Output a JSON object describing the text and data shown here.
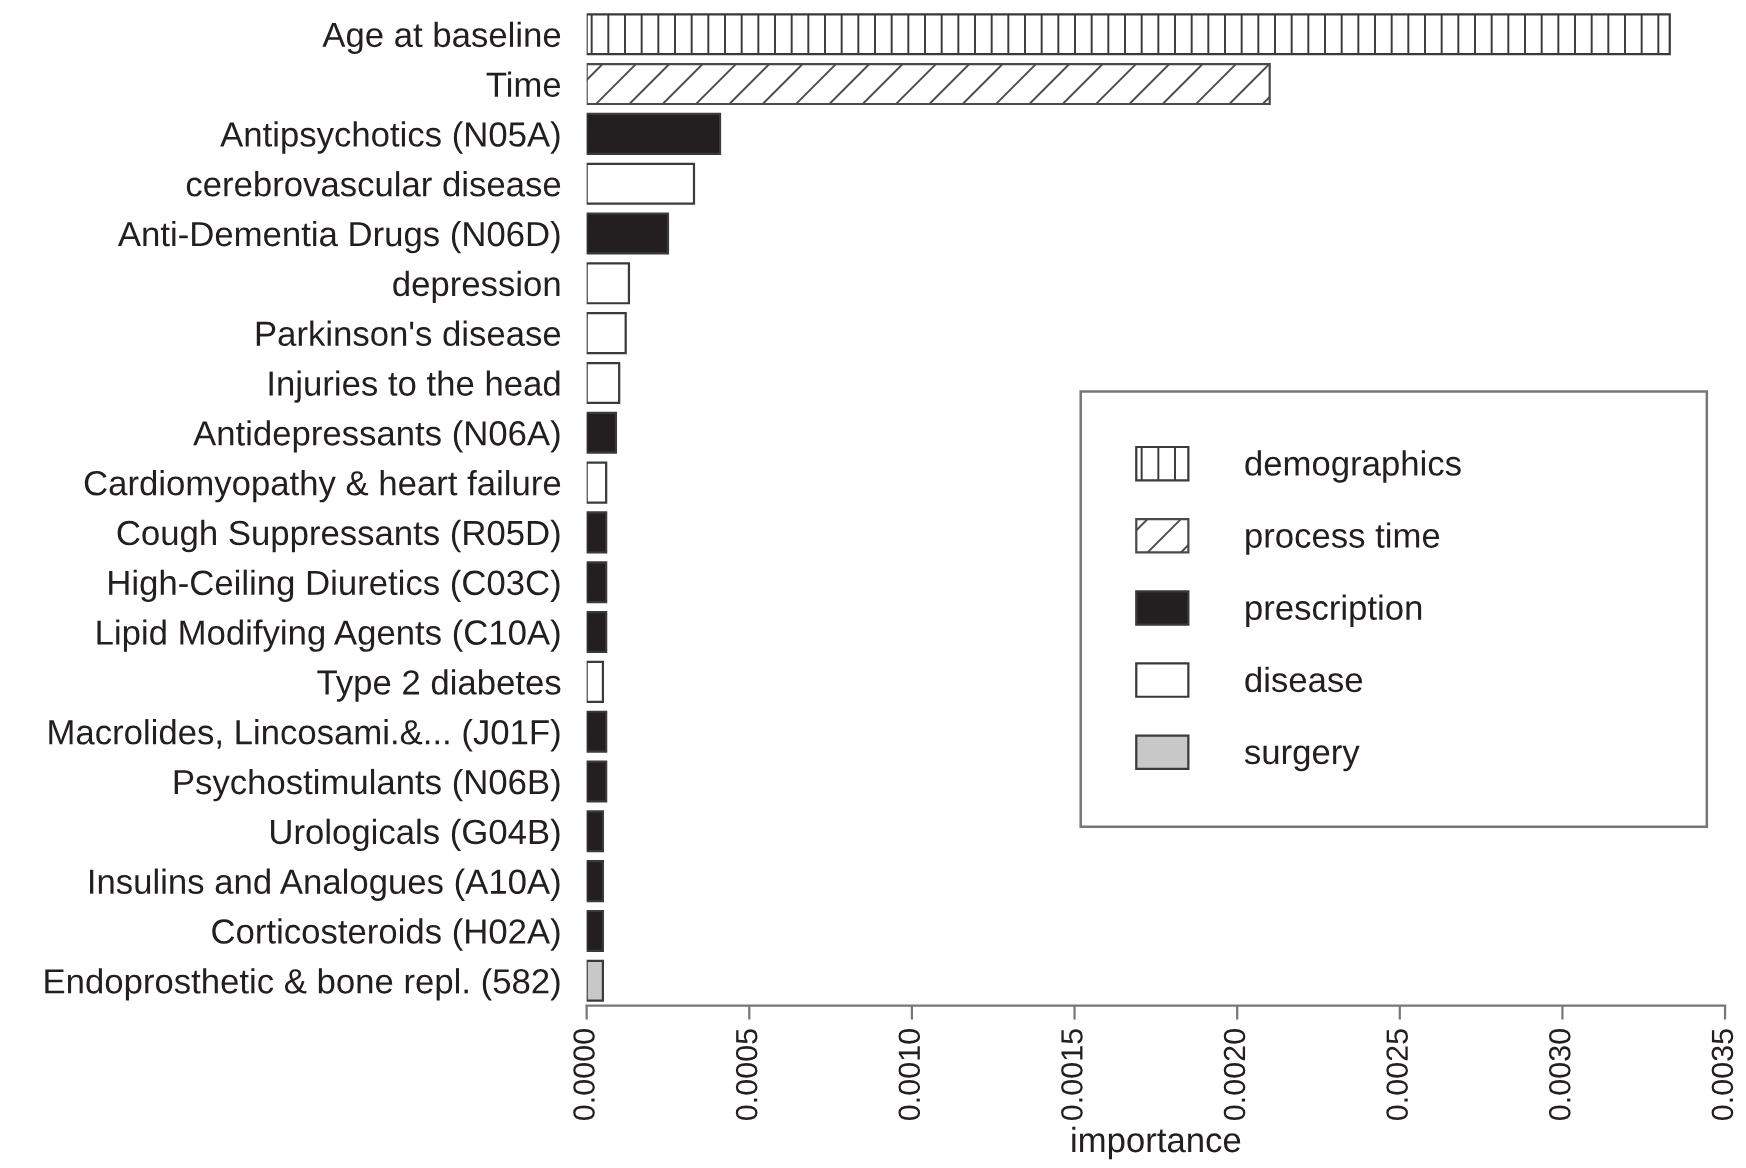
{
  "chart_data": {
    "type": "bar",
    "orientation": "horizontal",
    "stacked": true,
    "xlabel": "importance",
    "categories": [
      "Age at baseline",
      "Time",
      "Antipsychotics (N05A)",
      "cerebrovascular disease",
      "Anti-Dementia Drugs (N06D)",
      "depression",
      "Parkinson's disease",
      "Injuries to the head",
      "Antidepressants (N06A)",
      "Cardiomyopathy & heart failure",
      "Cough Suppressants (R05D)",
      "High-Ceiling Diuretics (C03C)",
      "Lipid Modifying Agents (C10A)",
      "Type 2 diabetes",
      "Macrolides, Lincosami.&... (J01F)",
      "Psychostimulants (N06B)",
      "Urologicals (G04B)",
      "Insulins and Analogues (A10A)",
      "Corticosteroids (H02A)",
      "Endoprosthetic & bone repl. (582)"
    ],
    "series": [
      {
        "name": "demographics",
        "color": "#3a3a3a",
        "values": [
          0.00333,
          null,
          null,
          null,
          null,
          null,
          null,
          null,
          null,
          null,
          null,
          null,
          null,
          null,
          null,
          null,
          null,
          null,
          null,
          null
        ]
      },
      {
        "name": "process time",
        "color": "#4a4a4a",
        "values": [
          null,
          0.0021,
          null,
          null,
          null,
          null,
          null,
          null,
          null,
          null,
          null,
          null,
          null,
          null,
          null,
          null,
          null,
          null,
          null,
          null
        ]
      },
      {
        "name": "prescription",
        "color": "#231f20",
        "values": [
          null,
          null,
          0.00041,
          null,
          0.00025,
          null,
          null,
          null,
          9e-05,
          null,
          6e-05,
          6e-05,
          6e-05,
          null,
          6e-05,
          6e-05,
          5e-05,
          5e-05,
          5e-05,
          null
        ]
      },
      {
        "name": "disease",
        "color": "#ffffff",
        "values": [
          null,
          null,
          null,
          0.00033,
          null,
          0.00013,
          0.00012,
          0.0001,
          null,
          6e-05,
          null,
          null,
          null,
          5e-05,
          null,
          null,
          null,
          null,
          null,
          null
        ]
      },
      {
        "name": "surgery",
        "color": "#c8c8c8",
        "values": [
          null,
          null,
          null,
          null,
          null,
          null,
          null,
          null,
          null,
          null,
          null,
          null,
          null,
          null,
          null,
          null,
          null,
          null,
          null,
          5e-05
        ]
      }
    ],
    "xlim": [
      0,
      0.0035
    ],
    "xticks": [
      {
        "value": 0,
        "label": "0.0000"
      },
      {
        "value": 0.0005,
        "label": "0.0005"
      },
      {
        "value": 0.001,
        "label": "0.0010"
      },
      {
        "value": 0.0015,
        "label": "0.0015"
      },
      {
        "value": 0.002,
        "label": "0.0020"
      },
      {
        "value": 0.0025,
        "label": "0.0025"
      },
      {
        "value": 0.003,
        "label": "0.0030"
      },
      {
        "value": 0.0035,
        "label": "0.0035"
      }
    ],
    "legend": "right"
  }
}
